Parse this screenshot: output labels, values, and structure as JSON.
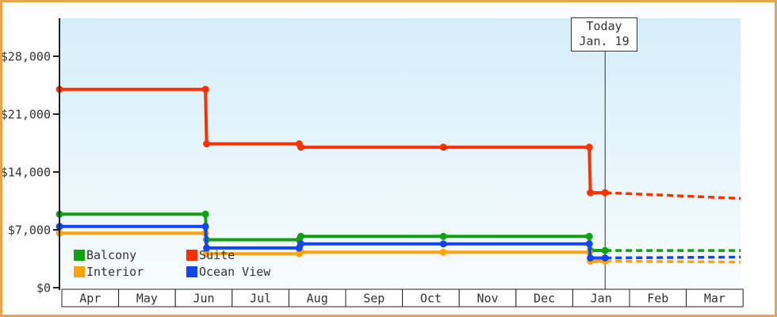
{
  "frame": {
    "border_color": "#E8A54F",
    "background_color": "#FFFFFF"
  },
  "today_box": {
    "line1": "Today",
    "line2": "Jan. 19"
  },
  "chart_data": {
    "type": "line",
    "title": "",
    "xlabel": "",
    "ylabel": "",
    "x_ticks": [
      "Apr",
      "May",
      "Jun",
      "Jul",
      "Aug",
      "Sep",
      "Oct",
      "Nov",
      "Dec",
      "Jan",
      "Feb",
      "Mar"
    ],
    "y_ticks": [
      {
        "value": 0,
        "label": "$0"
      },
      {
        "value": 7000,
        "label": "$7,000"
      },
      {
        "value": 14000,
        "label": "$14,000"
      },
      {
        "value": 21000,
        "label": "$21,000"
      },
      {
        "value": 28000,
        "label": "$28,000"
      }
    ],
    "ylim": [
      0,
      32600
    ],
    "grid": "off",
    "legend_position": "bottom-left-inside-plot",
    "style": "step lines, solid history before today, dashed projection after today",
    "price_change_dates": [
      "Jun 16",
      "Aug 6",
      "Oct 23",
      "Jan 10"
    ],
    "today_marker": {
      "label": "Today",
      "date": "Jan. 19",
      "month_offset": 9.57
    },
    "plot_colors": {
      "bg_gradient_top": "#D4EEF9",
      "bg_gradient_bottom": "#F8FCFE",
      "axis": "#222222",
      "text": "#333333",
      "today_line": "#333333",
      "month_band_fill": "#FFFFFF",
      "month_band_border": "#222222"
    },
    "series": [
      {
        "name": "Balcony",
        "color": "#10A010",
        "solid_points": [
          [
            -0.04,
            8900
          ],
          [
            2.53,
            8900
          ],
          [
            2.55,
            5800
          ],
          [
            4.18,
            5800
          ],
          [
            4.21,
            6200
          ],
          [
            6.72,
            6200
          ],
          [
            9.29,
            6200
          ],
          [
            9.31,
            4500
          ],
          [
            9.57,
            4500
          ]
        ],
        "dashed_points": [
          [
            9.57,
            4500
          ],
          [
            11.96,
            4500
          ]
        ]
      },
      {
        "name": "Suite",
        "color": "#FF3000",
        "solid_points": [
          [
            -0.04,
            24000
          ],
          [
            2.53,
            24000
          ],
          [
            2.55,
            17400
          ],
          [
            4.18,
            17400
          ],
          [
            4.21,
            17000
          ],
          [
            6.72,
            17000
          ],
          [
            9.29,
            17000
          ],
          [
            9.31,
            11500
          ],
          [
            9.57,
            11500
          ]
        ],
        "dashed_points": [
          [
            9.57,
            11500
          ],
          [
            11.96,
            10800
          ]
        ]
      },
      {
        "name": "Interior",
        "color": "#FFA30A",
        "solid_points": [
          [
            -0.04,
            6600
          ],
          [
            2.53,
            6600
          ],
          [
            2.55,
            4100
          ],
          [
            4.18,
            4100
          ],
          [
            4.21,
            4300
          ],
          [
            6.72,
            4300
          ],
          [
            9.29,
            4300
          ],
          [
            9.31,
            3200
          ],
          [
            9.57,
            3200
          ]
        ],
        "dashed_points": [
          [
            9.57,
            3200
          ],
          [
            11.96,
            3100
          ]
        ]
      },
      {
        "name": "Ocean View",
        "color": "#1245EE",
        "solid_points": [
          [
            -0.04,
            7400
          ],
          [
            2.53,
            7400
          ],
          [
            2.55,
            4800
          ],
          [
            4.18,
            4800
          ],
          [
            4.21,
            5300
          ],
          [
            6.72,
            5300
          ],
          [
            9.29,
            5300
          ],
          [
            9.31,
            3600
          ],
          [
            9.57,
            3600
          ]
        ],
        "dashed_points": [
          [
            9.57,
            3600
          ],
          [
            11.96,
            3700
          ]
        ]
      }
    ]
  }
}
